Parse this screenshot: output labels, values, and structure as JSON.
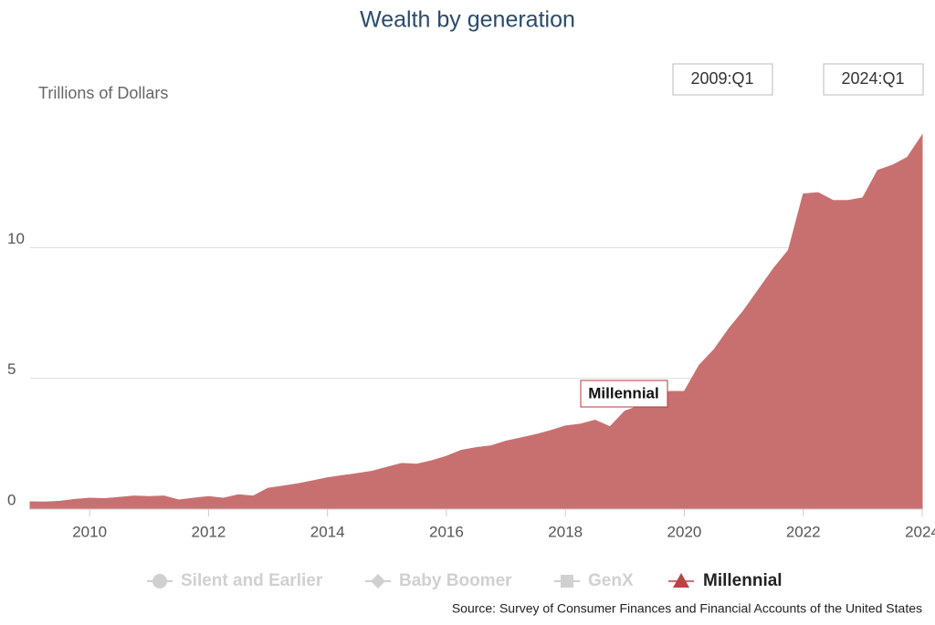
{
  "chart_data": {
    "type": "area",
    "title": "Wealth by generation",
    "y_label": "Trillions of Dollars",
    "range_start": "2009:Q1",
    "range_end": "2024:Q1",
    "source": "Source: Survey of Consumer Finances and Financial Accounts of the United States",
    "tooltip": "Millennial",
    "x": [
      2009,
      2009.25,
      2009.5,
      2009.75,
      2010,
      2010.25,
      2010.5,
      2010.75,
      2011,
      2011.25,
      2011.5,
      2011.75,
      2012,
      2012.25,
      2012.5,
      2012.75,
      2013,
      2013.25,
      2013.5,
      2013.75,
      2014,
      2014.25,
      2014.5,
      2014.75,
      2015,
      2015.25,
      2015.5,
      2015.75,
      2016,
      2016.25,
      2016.5,
      2016.75,
      2017,
      2017.25,
      2017.5,
      2017.75,
      2018,
      2018.25,
      2018.5,
      2018.75,
      2019,
      2019.25,
      2019.5,
      2019.75,
      2020,
      2020.25,
      2020.5,
      2020.75,
      2021,
      2021.25,
      2021.5,
      2021.75,
      2022,
      2022.25,
      2022.5,
      2022.75,
      2023,
      2023.25,
      2023.5,
      2023.75,
      2024
    ],
    "series": [
      {
        "name": "Millennial",
        "color": "#c87070",
        "values": [
          0.28,
          0.27,
          0.3,
          0.37,
          0.42,
          0.4,
          0.45,
          0.5,
          0.48,
          0.5,
          0.35,
          0.42,
          0.48,
          0.42,
          0.55,
          0.5,
          0.8,
          0.88,
          0.97,
          1.08,
          1.2,
          1.28,
          1.36,
          1.45,
          1.6,
          1.75,
          1.72,
          1.85,
          2.02,
          2.25,
          2.35,
          2.42,
          2.6,
          2.72,
          2.85,
          3.0,
          3.18,
          3.25,
          3.4,
          3.15,
          3.75,
          3.95,
          4.3,
          4.5,
          4.5,
          5.5,
          6.1,
          6.9,
          7.6,
          8.4,
          9.2,
          9.9,
          12.05,
          12.1,
          11.8,
          11.8,
          11.9,
          12.95,
          13.15,
          13.45,
          14.3
        ]
      }
    ],
    "legend_hidden": [
      "Silent and Earlier",
      "Baby Boomer",
      "GenX"
    ],
    "hidden_color": "#d0d0d0",
    "xlim": [
      2009,
      2024
    ],
    "xticks": [
      2010,
      2012,
      2014,
      2016,
      2018,
      2020,
      2022,
      2024
    ],
    "ylim": [
      0,
      15
    ],
    "yticks": [
      0,
      5,
      10
    ],
    "grid": true
  }
}
